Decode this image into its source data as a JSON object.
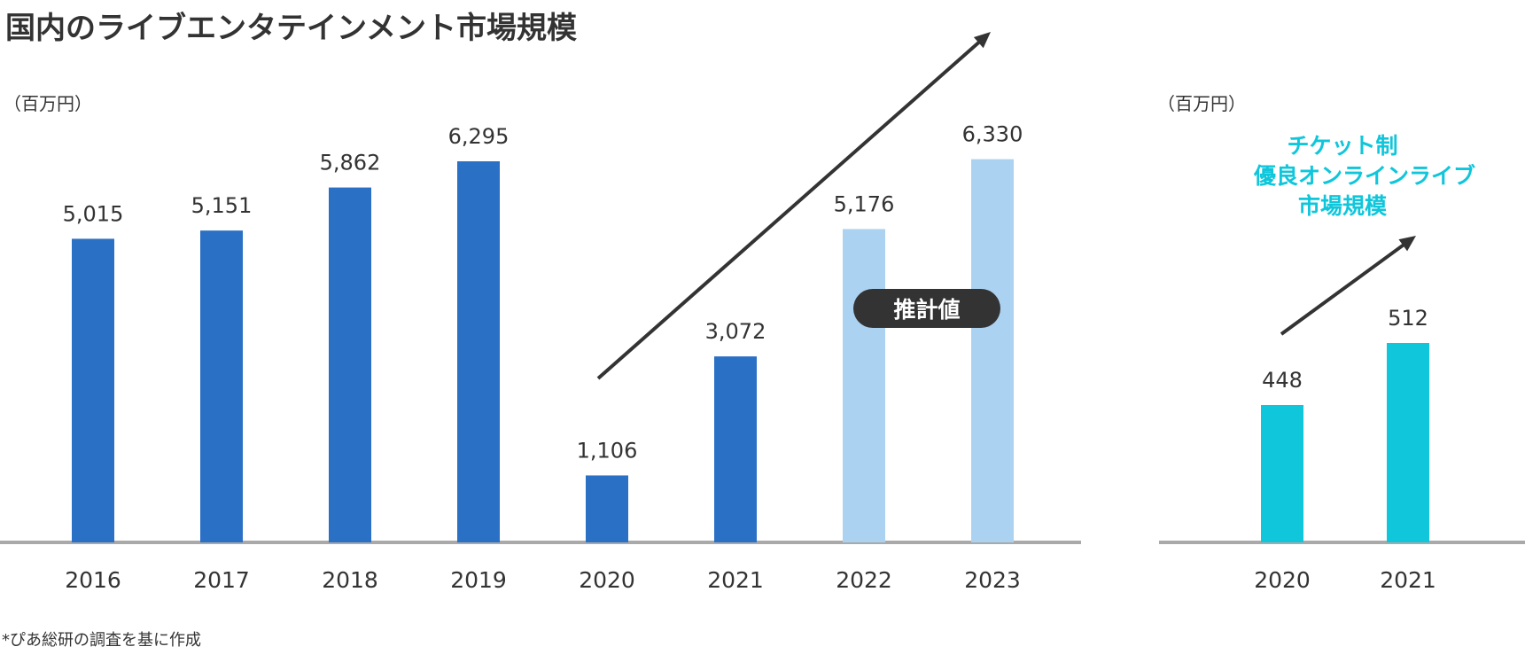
{
  "title": "国内のライブエンタテインメント市場規模",
  "unit_left": "（百万円）",
  "unit_right": "（百万円）",
  "estimate_badge": "推計値",
  "online_callout": [
    "チケット制",
    "優良オンラインライブ",
    "市場規模"
  ],
  "footnote": "*ぴあ総研の調査を基に作成",
  "colors": {
    "actual": "#2a70c5",
    "estimate": "#acd2f1",
    "online": "#0fc6db",
    "axis": "#a9a9a9",
    "badge": "#333333",
    "arrow": "#333333"
  },
  "chart_data": [
    {
      "type": "bar",
      "title": "国内のライブエンタテインメント市場規模",
      "ylabel": "（百万円）",
      "categories": [
        "2016",
        "2017",
        "2018",
        "2019",
        "2020",
        "2021",
        "2022",
        "2023"
      ],
      "values": [
        5015,
        5151,
        5862,
        6295,
        1106,
        3072,
        5176,
        6330
      ],
      "value_labels": [
        "5,015",
        "5,151",
        "5,862",
        "6,295",
        "1,106",
        "3,072",
        "5,176",
        "6,330"
      ],
      "estimated": [
        false,
        false,
        false,
        false,
        false,
        false,
        true,
        true
      ],
      "ylim": [
        0,
        7000
      ],
      "grid": false
    },
    {
      "type": "bar",
      "title": "チケット制 優良オンラインライブ 市場規模",
      "ylabel": "（百万円）",
      "categories": [
        "2020",
        "2021"
      ],
      "values": [
        448,
        512
      ],
      "value_labels": [
        "448",
        "512"
      ],
      "ylim": [
        0,
        700
      ],
      "grid": false
    }
  ]
}
